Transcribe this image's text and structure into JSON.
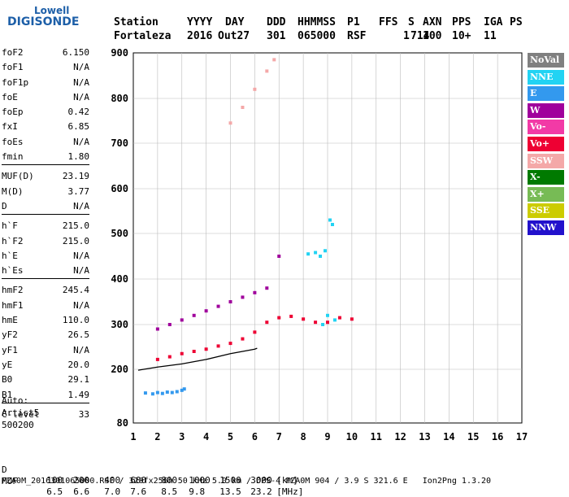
{
  "logo": {
    "line1": "Lowell",
    "line2": "DIGISONDE"
  },
  "header": {
    "labels": [
      "Station",
      "YYYY",
      "DAY",
      "DDD",
      "HHMMSS",
      "P1",
      "FFS",
      "S",
      "AXN",
      "PPS",
      "IGA",
      "PS"
    ],
    "values": [
      "Fortaleza",
      "2016",
      "Out27",
      "301",
      "065000",
      "RSF",
      "1",
      "714",
      "100",
      "10+",
      "11"
    ]
  },
  "params": [
    {
      "k": "foF2",
      "v": "6.150"
    },
    {
      "k": "foF1",
      "v": "N/A"
    },
    {
      "k": "foF1p",
      "v": "N/A"
    },
    {
      "k": "foE",
      "v": "N/A"
    },
    {
      "k": "foEp",
      "v": "0.42"
    },
    {
      "k": "fxI",
      "v": "6.85"
    },
    {
      "k": "foEs",
      "v": "N/A"
    },
    {
      "k": "fmin",
      "v": "1.80"
    },
    {
      "sep": true
    },
    {
      "k": "MUF(D)",
      "v": "23.19"
    },
    {
      "k": "M(D)",
      "v": "3.77"
    },
    {
      "k": "D",
      "v": "N/A"
    },
    {
      "sep": true
    },
    {
      "k": "h`F",
      "v": "215.0"
    },
    {
      "k": "h`F2",
      "v": "215.0"
    },
    {
      "k": "h`E",
      "v": "N/A"
    },
    {
      "k": "h`Es",
      "v": "N/A"
    },
    {
      "sep": true
    },
    {
      "k": "hmF2",
      "v": "245.4"
    },
    {
      "k": "hmF1",
      "v": "N/A"
    },
    {
      "k": "hmE",
      "v": "110.0"
    },
    {
      "k": "yF2",
      "v": "26.5"
    },
    {
      "k": "yF1",
      "v": "N/A"
    },
    {
      "k": "yE",
      "v": "20.0"
    },
    {
      "k": "B0",
      "v": "29.1"
    },
    {
      "k": "B1",
      "v": "1.49"
    },
    {
      "sep": true
    },
    {
      "k": "C-level",
      "v": "33"
    }
  ],
  "auto": [
    "Auto:",
    "Artist5",
    "500200"
  ],
  "legend": [
    {
      "label": "NoVal",
      "color": "#808080"
    },
    {
      "label": "NNE",
      "color": "#22d3f3"
    },
    {
      "label": "E",
      "color": "#3399ee"
    },
    {
      "label": "W",
      "color": "#a0009c"
    },
    {
      "label": "Vo-",
      "color": "#f23aa6"
    },
    {
      "label": "Vo+",
      "color": "#ee0033"
    },
    {
      "label": "SSW",
      "color": "#f4a8a8"
    },
    {
      "label": "X-",
      "color": "#007a00"
    },
    {
      "label": "X+",
      "color": "#77bb55"
    },
    {
      "label": "SSE",
      "color": "#cccc00"
    },
    {
      "label": "NNW",
      "color": "#2211cc"
    }
  ],
  "chart_data": {
    "type": "scatter",
    "xlim": [
      1,
      17
    ],
    "ylim": [
      80,
      900
    ],
    "x_ticks": [
      "1",
      "2",
      "3",
      "4",
      "5",
      "6",
      "7",
      "8",
      "9",
      "10",
      "11",
      "12",
      "13",
      "14",
      "15",
      "16",
      "17"
    ],
    "y_ticks": [
      "80",
      "200",
      "300",
      "400",
      "500",
      "600",
      "700",
      "800",
      "900"
    ],
    "grid": true,
    "series": [
      {
        "name": "E",
        "color": "#3399ee",
        "points": [
          [
            1.5,
            147
          ],
          [
            1.8,
            145
          ],
          [
            2.0,
            148
          ],
          [
            2.2,
            146
          ],
          [
            2.4,
            149
          ],
          [
            2.6,
            148
          ],
          [
            2.8,
            150
          ],
          [
            3.0,
            153
          ],
          [
            3.1,
            156
          ]
        ]
      },
      {
        "name": "NNE",
        "color": "#22d3f3",
        "points": [
          [
            8.2,
            455
          ],
          [
            8.5,
            458
          ],
          [
            8.7,
            450
          ],
          [
            8.9,
            462
          ],
          [
            9.1,
            530
          ],
          [
            9.2,
            520
          ],
          [
            9.0,
            320
          ],
          [
            9.3,
            310
          ],
          [
            8.8,
            300
          ]
        ]
      },
      {
        "name": "Vo+",
        "color": "#ee0033",
        "points": [
          [
            2.0,
            222
          ],
          [
            2.5,
            228
          ],
          [
            3.0,
            235
          ],
          [
            3.5,
            240
          ],
          [
            4.0,
            245
          ],
          [
            4.5,
            252
          ],
          [
            5.0,
            258
          ],
          [
            5.5,
            268
          ],
          [
            6.0,
            283
          ],
          [
            6.5,
            305
          ],
          [
            7.0,
            315
          ],
          [
            7.5,
            318
          ],
          [
            8.0,
            312
          ],
          [
            8.5,
            305
          ],
          [
            9.0,
            305
          ],
          [
            9.5,
            315
          ],
          [
            10.0,
            312
          ]
        ]
      },
      {
        "name": "W",
        "color": "#a0009c",
        "points": [
          [
            2.0,
            290
          ],
          [
            2.5,
            300
          ],
          [
            3.0,
            310
          ],
          [
            3.5,
            320
          ],
          [
            4.0,
            330
          ],
          [
            4.5,
            340
          ],
          [
            5.0,
            350
          ],
          [
            5.5,
            360
          ],
          [
            6.0,
            370
          ],
          [
            6.5,
            380
          ],
          [
            7.0,
            450
          ]
        ]
      },
      {
        "name": "SSW",
        "color": "#f4a8a8",
        "points": [
          [
            5.0,
            745
          ],
          [
            5.5,
            780
          ],
          [
            6.0,
            820
          ],
          [
            6.5,
            860
          ],
          [
            6.8,
            885
          ]
        ]
      }
    ],
    "trace": {
      "name": "profile",
      "points": [
        [
          1.2,
          198
        ],
        [
          2.0,
          205
        ],
        [
          3.0,
          212
        ],
        [
          4.0,
          222
        ],
        [
          5.0,
          235
        ],
        [
          5.8,
          243
        ],
        [
          6.0,
          245
        ],
        [
          6.1,
          247
        ]
      ]
    }
  },
  "footer": {
    "d_label": "D",
    "d_values": [
      "100",
      "200",
      "400",
      "600",
      "800",
      "1000",
      "1500",
      "3000",
      "[km]"
    ],
    "muf_label": "MUF",
    "muf_values": [
      "6.5",
      "6.6",
      "7.0",
      "7.6",
      "8.5",
      "9.8",
      "13.5",
      "23.2",
      "[MHz]"
    ],
    "info": "FZA0M_2016301065000.RSF / 320fx256h 50 kHz 5.0 km / DPS-4 FZA0M 904 / 3.9 S 321.6 E   Ion2Png 1.3.20"
  }
}
